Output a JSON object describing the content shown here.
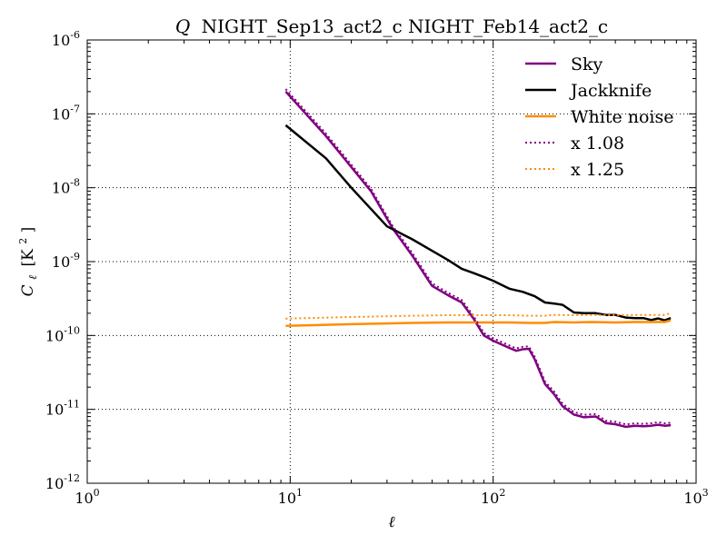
{
  "chart_data": {
    "type": "line",
    "title": {
      "var": "Q",
      "rest": "NIGHT_Sep13_act2_c NIGHT_Feb14_act2_c"
    },
    "xlabel": "ℓ",
    "ylabel": {
      "main": "C",
      "sub": "ℓ",
      "unit": "[K",
      "unit_sup": "2",
      "unit_close": "]"
    },
    "xscale": "log",
    "yscale": "log",
    "xlim": [
      1,
      1000
    ],
    "ylim": [
      1e-12,
      1e-06
    ],
    "xticks": [
      {
        "base": "10",
        "exp": "0",
        "value": 1
      },
      {
        "base": "10",
        "exp": "1",
        "value": 10
      },
      {
        "base": "10",
        "exp": "2",
        "value": 100
      },
      {
        "base": "10",
        "exp": "3",
        "value": 1000
      }
    ],
    "yticks": [
      {
        "base": "10",
        "exp": "-12",
        "value": 1e-12
      },
      {
        "base": "10",
        "exp": "-11",
        "value": 1e-11
      },
      {
        "base": "10",
        "exp": "-10",
        "value": 1e-10
      },
      {
        "base": "10",
        "exp": "-9",
        "value": 1e-09
      },
      {
        "base": "10",
        "exp": "-8",
        "value": 1e-08
      },
      {
        "base": "10",
        "exp": "-7",
        "value": 1e-07
      },
      {
        "base": "10",
        "exp": "-6",
        "value": 1e-06
      }
    ],
    "grid": true,
    "legend_position": "top-right",
    "series": [
      {
        "name": "Sky",
        "color": "#800080",
        "style": "solid",
        "x": [
          9.5,
          15,
          25,
          32,
          40,
          50,
          60,
          70,
          80,
          90,
          100,
          120,
          130,
          140,
          150,
          160,
          180,
          200,
          220,
          250,
          280,
          320,
          360,
          400,
          450,
          500,
          550,
          600,
          650,
          700,
          750
        ],
        "y": [
          2e-07,
          5e-08,
          9e-09,
          2.8e-09,
          1.2e-09,
          4.7e-10,
          3.5e-10,
          2.8e-10,
          1.7e-10,
          1e-10,
          8.5e-11,
          6.8e-11,
          6.2e-11,
          6.5e-11,
          6.6e-11,
          4.8e-11,
          2.2e-11,
          1.6e-11,
          1.1e-11,
          8.5e-12,
          7.8e-12,
          8e-12,
          6.5e-12,
          6.3e-12,
          5.8e-12,
          6e-12,
          5.9e-12,
          6e-12,
          6.2e-12,
          6e-12,
          6.1e-12
        ]
      },
      {
        "name": "Jackknife",
        "color": "#000000",
        "style": "solid",
        "x": [
          9.5,
          15,
          20,
          30,
          40,
          50,
          60,
          70,
          80,
          90,
          100,
          120,
          140,
          160,
          180,
          200,
          220,
          250,
          280,
          320,
          360,
          400,
          450,
          500,
          550,
          600,
          650,
          700,
          750
        ],
        "y": [
          7e-08,
          2.5e-08,
          1e-08,
          3e-09,
          2e-09,
          1.4e-09,
          1.05e-09,
          8e-10,
          7e-10,
          6.2e-10,
          5.5e-10,
          4.3e-10,
          3.9e-10,
          3.4e-10,
          2.8e-10,
          2.7e-10,
          2.6e-10,
          2.05e-10,
          2e-10,
          2e-10,
          1.9e-10,
          1.9e-10,
          1.75e-10,
          1.72e-10,
          1.72e-10,
          1.62e-10,
          1.7e-10,
          1.6e-10,
          1.72e-10
        ]
      },
      {
        "name": "White noise",
        "color": "#ff8c00",
        "style": "solid",
        "x": [
          9.5,
          20,
          40,
          60,
          80,
          100,
          120,
          150,
          180,
          200,
          250,
          300,
          400,
          500,
          600,
          700,
          750
        ],
        "y": [
          1.35e-10,
          1.42e-10,
          1.48e-10,
          1.5e-10,
          1.5e-10,
          1.5e-10,
          1.5e-10,
          1.48e-10,
          1.48e-10,
          1.52e-10,
          1.5e-10,
          1.52e-10,
          1.5e-10,
          1.52e-10,
          1.52e-10,
          1.52e-10,
          1.6e-10
        ]
      },
      {
        "name": "x 1.08",
        "color": "#800080",
        "style": "dotted",
        "x": [
          9.5,
          15,
          25,
          32,
          40,
          50,
          60,
          70,
          80,
          90,
          100,
          120,
          130,
          140,
          150,
          160,
          180,
          200,
          220,
          250,
          280,
          320,
          360,
          400,
          450,
          500,
          550,
          600,
          650,
          700,
          750
        ],
        "y": [
          2.16e-07,
          5.4e-08,
          9.72e-09,
          3.02e-09,
          1.3e-09,
          5.08e-10,
          3.78e-10,
          3.02e-10,
          1.84e-10,
          1.08e-10,
          9.18e-11,
          7.34e-11,
          6.7e-11,
          7.02e-11,
          7.13e-11,
          5.18e-11,
          2.38e-11,
          1.73e-11,
          1.19e-11,
          9.18e-12,
          8.42e-12,
          8.64e-12,
          7.02e-12,
          6.8e-12,
          6.26e-12,
          6.48e-12,
          6.37e-12,
          6.48e-12,
          6.7e-12,
          6.48e-12,
          6.59e-12
        ]
      },
      {
        "name": "x 1.25",
        "color": "#ff8c00",
        "style": "dotted",
        "x": [
          9.5,
          20,
          40,
          60,
          80,
          100,
          120,
          150,
          180,
          200,
          250,
          300,
          400,
          500,
          600,
          700,
          750
        ],
        "y": [
          1.69e-10,
          1.78e-10,
          1.85e-10,
          1.88e-10,
          1.88e-10,
          1.88e-10,
          1.88e-10,
          1.85e-10,
          1.85e-10,
          1.9e-10,
          1.88e-10,
          1.9e-10,
          1.88e-10,
          1.9e-10,
          1.9e-10,
          1.9e-10,
          2e-10
        ]
      }
    ]
  }
}
